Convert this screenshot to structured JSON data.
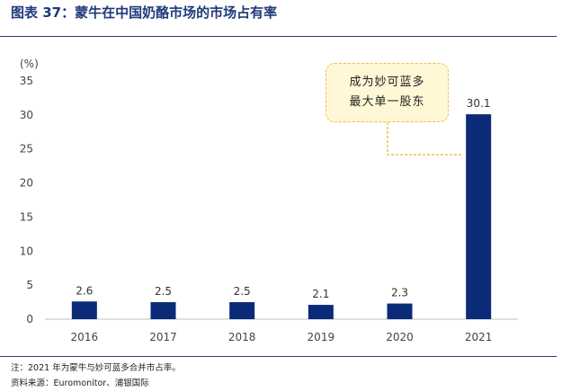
{
  "title": "图表 37：蒙牛在中国奶酪市场的市场占有率",
  "chart_data": {
    "type": "bar",
    "categories": [
      "2016",
      "2017",
      "2018",
      "2019",
      "2020",
      "2021"
    ],
    "values": [
      2.6,
      2.5,
      2.5,
      2.1,
      2.3,
      30.1
    ],
    "data_labels": [
      "2.6",
      "2.5",
      "2.5",
      "2.1",
      "2.3",
      "30.1"
    ],
    "ylabel": "(%)",
    "ylim": [
      0,
      35
    ],
    "yticks": [
      "0",
      "5",
      "10",
      "15",
      "20",
      "25",
      "30",
      "35"
    ],
    "bar_color": "#0b2a78",
    "grid": false,
    "annotation": {
      "line1": "成为妙可蓝多",
      "line2": "最大单一股东",
      "target_category": "2021"
    }
  },
  "footer": {
    "note": "注：2021 年为蒙牛与妙可蓝多合并市占率。",
    "source": "资料来源：Euromonitor、浦银国际"
  },
  "colors": {
    "title": "#1f3a7a",
    "callout_border": "#f0c14b",
    "callout_fill": "#fff7d6"
  }
}
